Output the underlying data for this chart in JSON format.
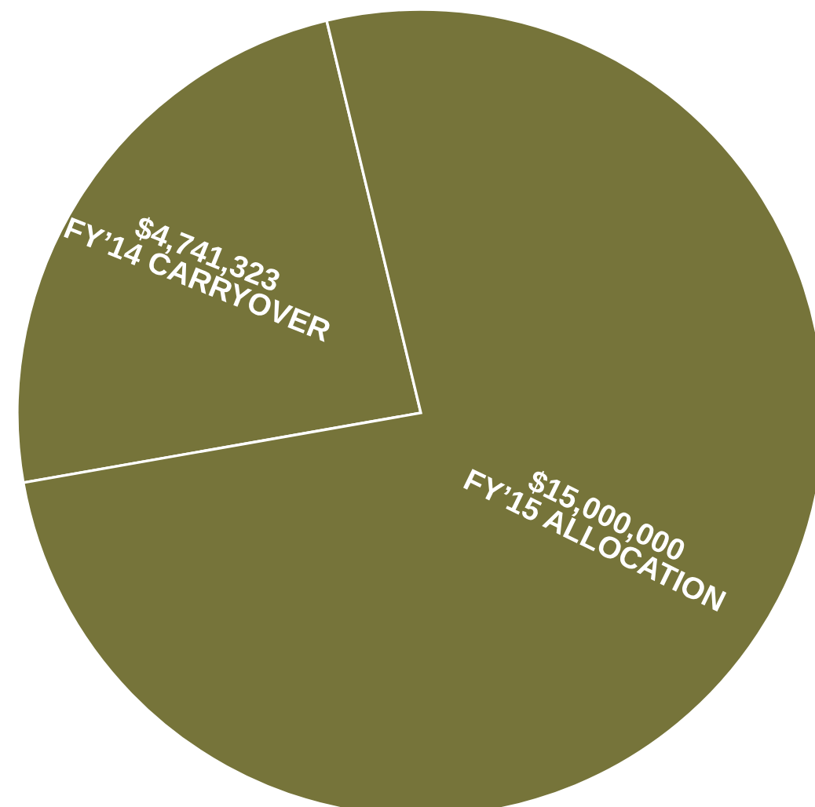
{
  "chart_data": {
    "type": "pie",
    "categories": [
      "FY’14 CARRYOVER",
      "FY’15 ALLOCATION"
    ],
    "values": [
      4741323,
      15000000
    ],
    "value_labels": [
      "$4,741,323",
      "$15,000,000"
    ],
    "colors": [
      "#76743a",
      "#76743a"
    ]
  }
}
